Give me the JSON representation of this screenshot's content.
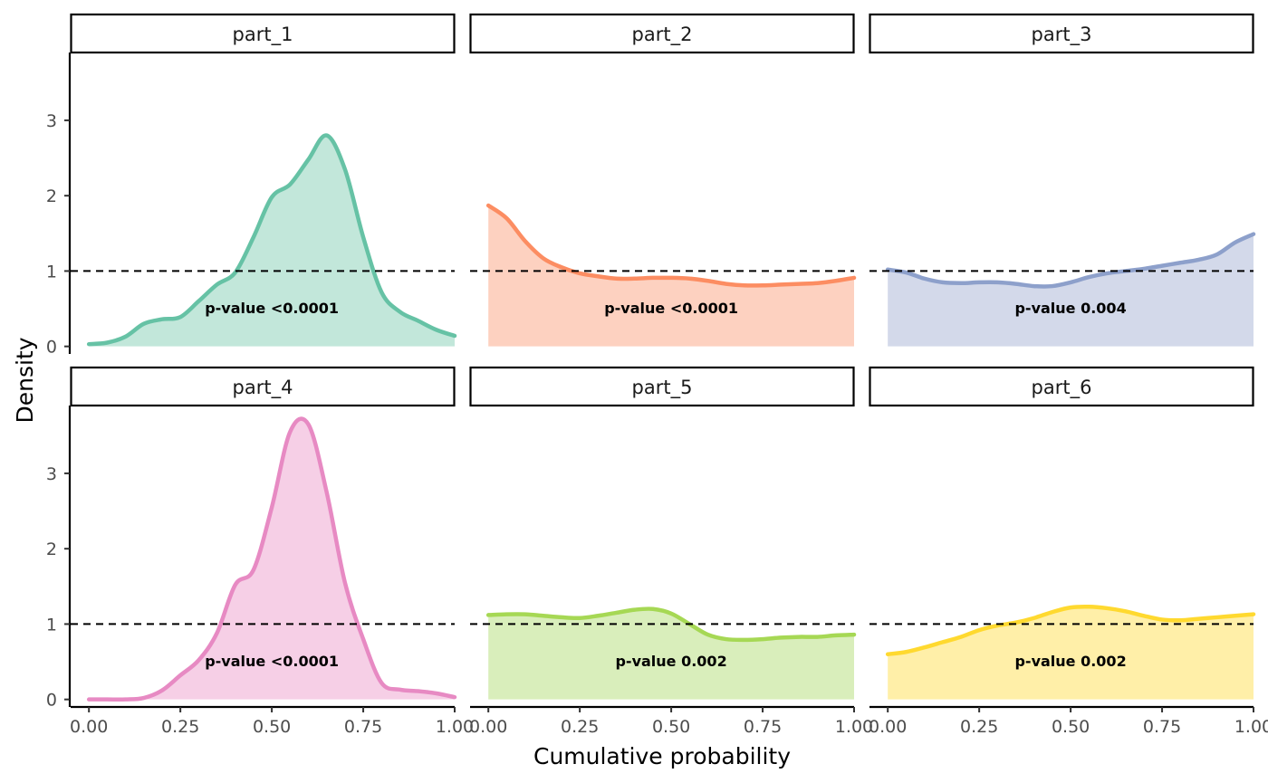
{
  "chart_data": {
    "type": "area",
    "xlabel": "Cumulative probability",
    "ylabel": "Density",
    "xlim": [
      -0.05,
      1.0
    ],
    "ylim": [
      -0.1,
      3.9
    ],
    "x_ticks": [
      0,
      0.25,
      0.5,
      0.75,
      1
    ],
    "x_tick_labels": [
      "0.00",
      "0.25",
      "0.50",
      "0.75",
      "1.00"
    ],
    "y_ticks": [
      0,
      1,
      2,
      3
    ],
    "y_tick_labels": [
      "0",
      "1",
      "2",
      "3"
    ],
    "reference_line": {
      "y": 1,
      "style": "dashed"
    },
    "grid": false,
    "layout": "facet 2 rows x 3 columns, shared axes",
    "series": [
      {
        "name": "part_1",
        "color": "#66c2a5",
        "fill": "#c2e7da",
        "annotation": "p-value <0.0001",
        "x": [
          0,
          0.05,
          0.1,
          0.15,
          0.2,
          0.25,
          0.3,
          0.35,
          0.4,
          0.45,
          0.5,
          0.55,
          0.6,
          0.65,
          0.7,
          0.75,
          0.8,
          0.85,
          0.9,
          0.95,
          1.0
        ],
        "y": [
          0.03,
          0.05,
          0.13,
          0.3,
          0.36,
          0.39,
          0.6,
          0.82,
          0.98,
          1.45,
          1.98,
          2.15,
          2.48,
          2.8,
          2.35,
          1.45,
          0.72,
          0.46,
          0.34,
          0.22,
          0.14
        ]
      },
      {
        "name": "part_2",
        "color": "#fc8d62",
        "fill": "#fdd1c0",
        "annotation": "p-value <0.0001",
        "x": [
          0,
          0.05,
          0.1,
          0.15,
          0.2,
          0.25,
          0.3,
          0.35,
          0.4,
          0.45,
          0.5,
          0.55,
          0.6,
          0.65,
          0.7,
          0.75,
          0.8,
          0.85,
          0.9,
          0.95,
          1.0
        ],
        "y": [
          1.87,
          1.7,
          1.4,
          1.17,
          1.05,
          0.97,
          0.93,
          0.9,
          0.9,
          0.91,
          0.91,
          0.9,
          0.87,
          0.83,
          0.81,
          0.81,
          0.82,
          0.83,
          0.84,
          0.87,
          0.91
        ]
      },
      {
        "name": "part_3",
        "color": "#8da0cb",
        "fill": "#d3d9ea",
        "annotation": "p-value 0.004",
        "x": [
          0,
          0.05,
          0.1,
          0.15,
          0.2,
          0.25,
          0.3,
          0.35,
          0.4,
          0.45,
          0.5,
          0.55,
          0.6,
          0.65,
          0.7,
          0.75,
          0.8,
          0.85,
          0.9,
          0.95,
          1.0
        ],
        "y": [
          1.02,
          0.98,
          0.9,
          0.85,
          0.84,
          0.85,
          0.85,
          0.83,
          0.8,
          0.8,
          0.85,
          0.92,
          0.97,
          1.0,
          1.03,
          1.07,
          1.11,
          1.15,
          1.22,
          1.38,
          1.49
        ]
      },
      {
        "name": "part_4",
        "color": "#e78ac3",
        "fill": "#f6cfe6",
        "annotation": "p-value <0.0001",
        "x": [
          0,
          0.05,
          0.1,
          0.15,
          0.2,
          0.25,
          0.3,
          0.35,
          0.4,
          0.45,
          0.5,
          0.55,
          0.6,
          0.65,
          0.7,
          0.75,
          0.8,
          0.85,
          0.9,
          0.95,
          1.0
        ],
        "y": [
          0.0,
          0.0,
          0.0,
          0.02,
          0.12,
          0.32,
          0.52,
          0.88,
          1.52,
          1.72,
          2.55,
          3.55,
          3.65,
          2.75,
          1.55,
          0.8,
          0.22,
          0.13,
          0.11,
          0.08,
          0.03
        ]
      },
      {
        "name": "part_5",
        "color": "#a6d854",
        "fill": "#d9eebb",
        "annotation": "p-value 0.002",
        "x": [
          0,
          0.05,
          0.1,
          0.15,
          0.2,
          0.25,
          0.3,
          0.35,
          0.4,
          0.45,
          0.5,
          0.55,
          0.6,
          0.65,
          0.7,
          0.75,
          0.8,
          0.85,
          0.9,
          0.95,
          1.0
        ],
        "y": [
          1.12,
          1.13,
          1.13,
          1.11,
          1.09,
          1.08,
          1.11,
          1.15,
          1.19,
          1.2,
          1.14,
          1.0,
          0.86,
          0.8,
          0.79,
          0.8,
          0.82,
          0.83,
          0.83,
          0.85,
          0.86
        ]
      },
      {
        "name": "part_6",
        "color": "#ffd92f",
        "fill": "#ffefa8",
        "annotation": "p-value 0.002",
        "x": [
          0,
          0.05,
          0.1,
          0.15,
          0.2,
          0.25,
          0.3,
          0.35,
          0.4,
          0.45,
          0.5,
          0.55,
          0.6,
          0.65,
          0.7,
          0.75,
          0.8,
          0.85,
          0.9,
          0.95,
          1.0
        ],
        "y": [
          0.6,
          0.63,
          0.69,
          0.76,
          0.83,
          0.92,
          0.98,
          1.02,
          1.08,
          1.16,
          1.22,
          1.23,
          1.21,
          1.17,
          1.11,
          1.06,
          1.05,
          1.07,
          1.09,
          1.11,
          1.13
        ]
      }
    ]
  }
}
